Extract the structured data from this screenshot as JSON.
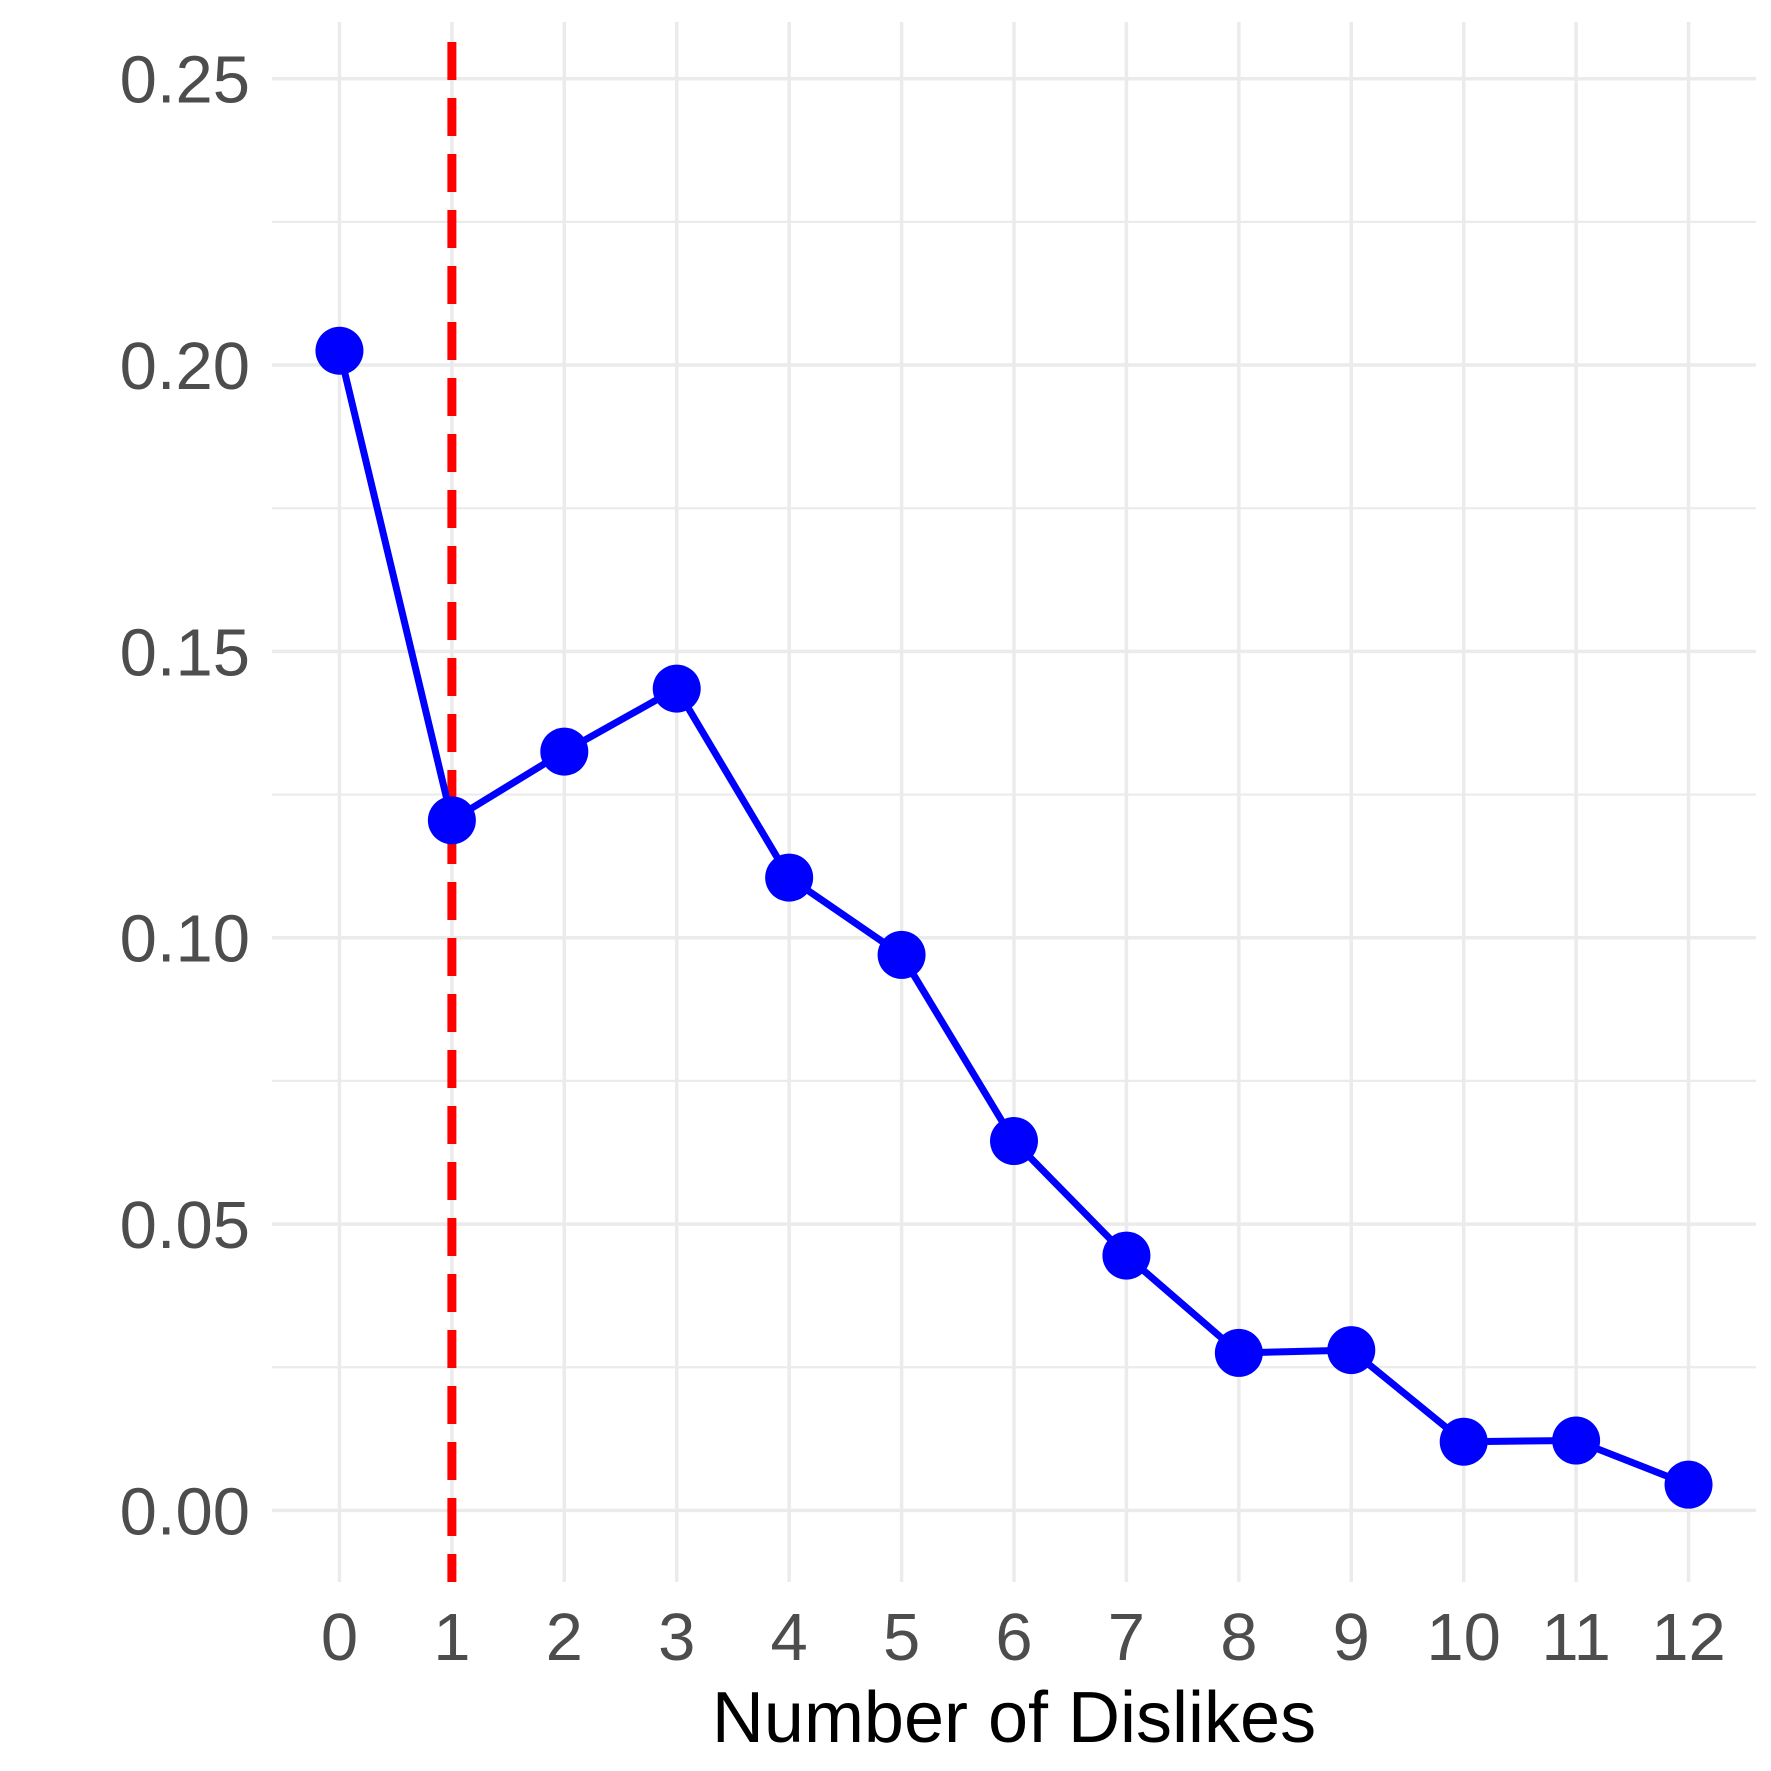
{
  "chart_data": {
    "type": "line",
    "title": "",
    "xlabel": "Number of Dislikes",
    "ylabel": "",
    "x": [
      0,
      1,
      2,
      3,
      4,
      5,
      6,
      7,
      8,
      9,
      10,
      11,
      12
    ],
    "x_tick_labels": [
      "0",
      "1",
      "2",
      "3",
      "4",
      "5",
      "6",
      "7",
      "8",
      "9",
      "10",
      "11",
      "12"
    ],
    "y_tick_labels": [
      "0.00",
      "0.05",
      "0.10",
      "0.15",
      "0.20",
      "0.25"
    ],
    "y_ticks": [
      0,
      0.05,
      0.1,
      0.15,
      0.2,
      0.25
    ],
    "xlim": [
      -0.6,
      12.6
    ],
    "ylim": [
      -0.0125,
      0.262
    ],
    "series": [
      {
        "values": [
          0.2025,
          0.1205,
          0.1325,
          0.1435,
          0.1105,
          0.097,
          0.0645,
          0.0445,
          0.0275,
          0.028,
          0.012,
          0.0122,
          0.0045
        ],
        "color": "#0000ff"
      }
    ],
    "reference_line": {
      "axis": "x",
      "value": 1,
      "color": "#ff0000",
      "style": "dashed"
    },
    "grid": true,
    "legend": "none",
    "background": "#ffffff",
    "grid_color": "#ebebeb"
  }
}
